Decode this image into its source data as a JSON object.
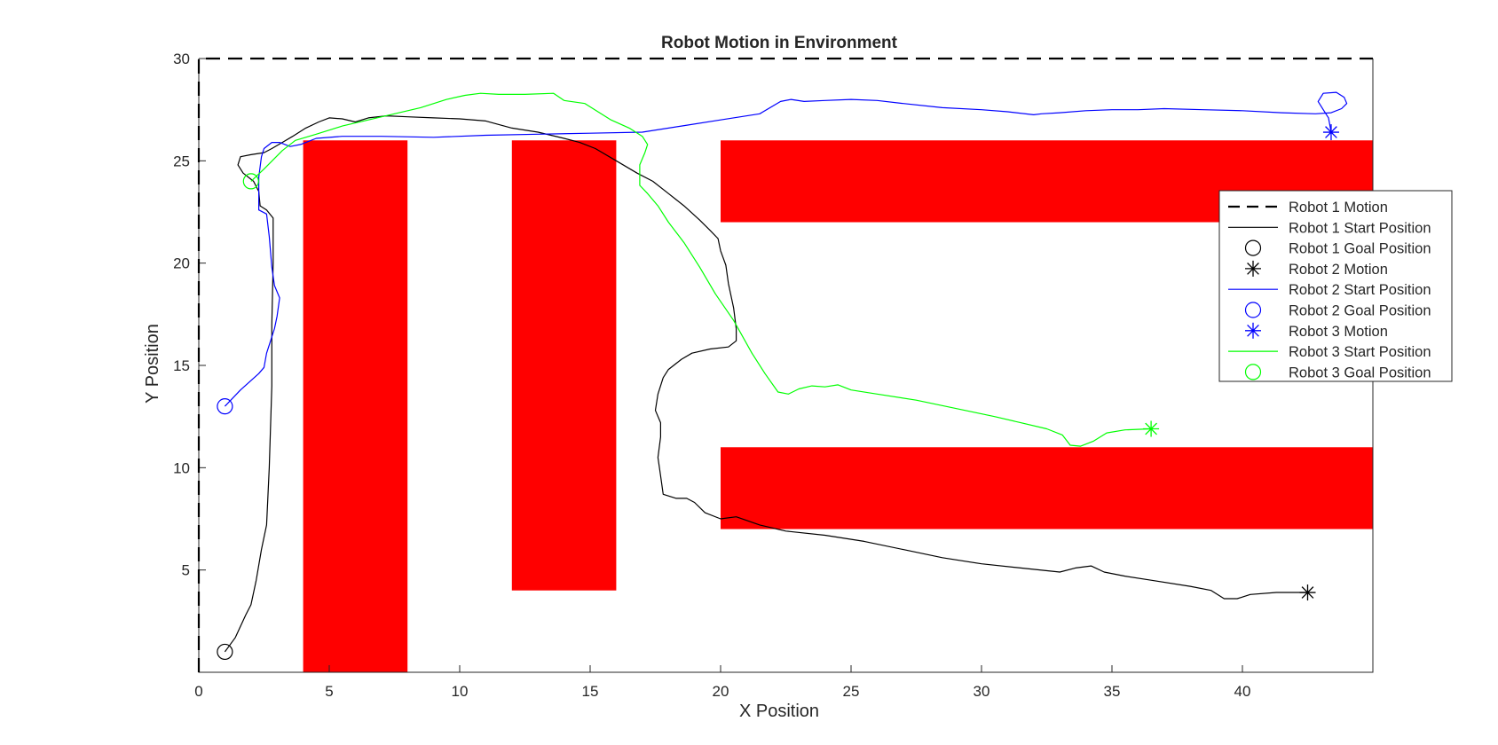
{
  "chart_data": {
    "type": "line",
    "title": "Robot Motion in Environment",
    "xlabel": "X Position",
    "ylabel": "Y Position",
    "xlim": [
      0,
      45
    ],
    "ylim": [
      0,
      30
    ],
    "xticks": [
      0,
      5,
      10,
      15,
      20,
      25,
      30,
      35,
      40
    ],
    "yticks": [
      5,
      10,
      15,
      20,
      25,
      30
    ],
    "grid": false,
    "legend_position": "right",
    "boundary": {
      "color": "#000000",
      "points": [
        [
          0,
          0
        ],
        [
          0,
          30
        ],
        [
          45,
          30
        ]
      ]
    },
    "obstacles": {
      "color": "#ff0000",
      "rects": [
        {
          "x": [
            4,
            8
          ],
          "y": [
            0,
            26
          ]
        },
        {
          "x": [
            12,
            16
          ],
          "y": [
            4,
            26
          ]
        },
        {
          "x": [
            20,
            45
          ],
          "y": [
            22,
            26
          ]
        },
        {
          "x": [
            20,
            45
          ],
          "y": [
            7,
            11
          ]
        }
      ]
    },
    "robots": [
      {
        "color": "#000000",
        "start": [
          1,
          1
        ],
        "goal": [
          42.5,
          3.9
        ],
        "path": [
          [
            1,
            1
          ],
          [
            1.4,
            1.7
          ],
          [
            1.8,
            2.8
          ],
          [
            2,
            3.3
          ],
          [
            2.2,
            4.5
          ],
          [
            2.4,
            6
          ],
          [
            2.6,
            7.2
          ],
          [
            2.7,
            10
          ],
          [
            2.8,
            14
          ],
          [
            2.8,
            17
          ],
          [
            2.85,
            20
          ],
          [
            2.85,
            22.2
          ],
          [
            2.6,
            22.6
          ],
          [
            2.35,
            22.8
          ],
          [
            2.3,
            23.5
          ],
          [
            2.1,
            24
          ],
          [
            1.7,
            24.4
          ],
          [
            1.5,
            24.8
          ],
          [
            1.6,
            25.2
          ],
          [
            2,
            25.3
          ],
          [
            2.5,
            25.4
          ],
          [
            2.8,
            25.6
          ],
          [
            3.2,
            25.9
          ],
          [
            3.6,
            26.2
          ],
          [
            4.1,
            26.6
          ],
          [
            4.6,
            26.9
          ],
          [
            5,
            27.1
          ],
          [
            5.5,
            27.05
          ],
          [
            6,
            26.9
          ],
          [
            6.5,
            27.1
          ],
          [
            7.2,
            27.2
          ],
          [
            8,
            27.15
          ],
          [
            9,
            27.1
          ],
          [
            10,
            27.05
          ],
          [
            11,
            26.95
          ],
          [
            12,
            26.6
          ],
          [
            13,
            26.4
          ],
          [
            14,
            26.1
          ],
          [
            14.6,
            25.9
          ],
          [
            15.2,
            25.6
          ],
          [
            16,
            25
          ],
          [
            16.8,
            24.4
          ],
          [
            17.4,
            24
          ],
          [
            18,
            23.4
          ],
          [
            18.6,
            22.8
          ],
          [
            19.2,
            22.1
          ],
          [
            19.6,
            21.6
          ],
          [
            19.9,
            21.2
          ],
          [
            20,
            20.6
          ],
          [
            20.2,
            19.9
          ],
          [
            20.3,
            19
          ],
          [
            20.5,
            17.8
          ],
          [
            20.6,
            16.8
          ],
          [
            20.6,
            16.2
          ],
          [
            20.3,
            15.9
          ],
          [
            19.6,
            15.8
          ],
          [
            18.9,
            15.6
          ],
          [
            18.5,
            15.3
          ],
          [
            18,
            14.8
          ],
          [
            17.8,
            14.4
          ],
          [
            17.6,
            13.6
          ],
          [
            17.5,
            12.8
          ],
          [
            17.7,
            12.2
          ],
          [
            17.7,
            11.5
          ],
          [
            17.6,
            10.5
          ],
          [
            17.7,
            9.6
          ],
          [
            17.8,
            8.7
          ],
          [
            18.3,
            8.5
          ],
          [
            18.7,
            8.5
          ],
          [
            19,
            8.3
          ],
          [
            19.4,
            7.8
          ],
          [
            20,
            7.5
          ],
          [
            20.6,
            7.6
          ],
          [
            21.5,
            7.2
          ],
          [
            22.5,
            6.9
          ],
          [
            24,
            6.7
          ],
          [
            25.5,
            6.4
          ],
          [
            27,
            6
          ],
          [
            28.5,
            5.6
          ],
          [
            30,
            5.3
          ],
          [
            31.5,
            5.1
          ],
          [
            33,
            4.9
          ],
          [
            33.6,
            5.1
          ],
          [
            34.2,
            5.2
          ],
          [
            34.7,
            4.9
          ],
          [
            35.5,
            4.7
          ],
          [
            36.5,
            4.5
          ],
          [
            38,
            4.2
          ],
          [
            38.8,
            4
          ],
          [
            39.3,
            3.6
          ],
          [
            39.8,
            3.6
          ],
          [
            40.3,
            3.8
          ],
          [
            41.3,
            3.9
          ],
          [
            42.5,
            3.9
          ]
        ]
      },
      {
        "color": "#0000ff",
        "start": [
          1,
          13
        ],
        "goal": [
          43.4,
          26.4
        ],
        "path": [
          [
            1,
            13
          ],
          [
            1.6,
            13.8
          ],
          [
            2.3,
            14.6
          ],
          [
            2.5,
            14.9
          ],
          [
            2.6,
            15.6
          ],
          [
            2.7,
            16
          ],
          [
            2.9,
            16.8
          ],
          [
            3,
            17.4
          ],
          [
            3.1,
            18.3
          ],
          [
            2.9,
            18.9
          ],
          [
            2.8,
            19.8
          ],
          [
            2.7,
            21.3
          ],
          [
            2.6,
            22.4
          ],
          [
            2.3,
            22.6
          ],
          [
            2.3,
            23.3
          ],
          [
            2.3,
            24.2
          ],
          [
            2.4,
            25.2
          ],
          [
            2.5,
            25.6
          ],
          [
            2.8,
            25.9
          ],
          [
            3.1,
            25.9
          ],
          [
            3.5,
            25.7
          ],
          [
            3.9,
            25.8
          ],
          [
            4.5,
            26.1
          ],
          [
            5.5,
            26.2
          ],
          [
            7,
            26.2
          ],
          [
            9,
            26.15
          ],
          [
            11,
            26.25
          ],
          [
            13,
            26.3
          ],
          [
            15,
            26.35
          ],
          [
            17,
            26.4
          ],
          [
            18.5,
            26.7
          ],
          [
            20,
            27
          ],
          [
            21.5,
            27.3
          ],
          [
            22.3,
            27.9
          ],
          [
            22.7,
            28
          ],
          [
            23.2,
            27.9
          ],
          [
            24,
            27.95
          ],
          [
            25,
            28
          ],
          [
            26,
            27.95
          ],
          [
            27,
            27.8
          ],
          [
            28.5,
            27.6
          ],
          [
            30,
            27.5
          ],
          [
            31,
            27.4
          ],
          [
            32,
            27.25
          ],
          [
            32.3,
            27.3
          ],
          [
            33,
            27.35
          ],
          [
            34,
            27.45
          ],
          [
            35,
            27.5
          ],
          [
            36,
            27.5
          ],
          [
            37,
            27.55
          ],
          [
            38.5,
            27.5
          ],
          [
            40,
            27.45
          ],
          [
            41.5,
            27.35
          ],
          [
            42.8,
            27.3
          ],
          [
            43.4,
            27.35
          ],
          [
            43.8,
            27.55
          ],
          [
            44,
            27.8
          ],
          [
            43.9,
            28.1
          ],
          [
            43.6,
            28.35
          ],
          [
            43.1,
            28.3
          ],
          [
            42.9,
            27.9
          ],
          [
            43.1,
            27.5
          ],
          [
            43.3,
            27.1
          ],
          [
            43.4,
            26.4
          ]
        ]
      },
      {
        "color": "#00ff00",
        "start": [
          2,
          24
        ],
        "goal": [
          36.5,
          11.9
        ],
        "path": [
          [
            2,
            24
          ],
          [
            2.5,
            24.6
          ],
          [
            3.2,
            25.5
          ],
          [
            3.7,
            26
          ],
          [
            4.5,
            26.3
          ],
          [
            5.5,
            26.7
          ],
          [
            6.5,
            27
          ],
          [
            7.5,
            27.3
          ],
          [
            8.5,
            27.6
          ],
          [
            9.5,
            28
          ],
          [
            10.2,
            28.2
          ],
          [
            10.8,
            28.3
          ],
          [
            11.5,
            28.25
          ],
          [
            12.5,
            28.25
          ],
          [
            13.6,
            28.3
          ],
          [
            14,
            27.95
          ],
          [
            14.8,
            27.8
          ],
          [
            15.3,
            27.4
          ],
          [
            15.8,
            27
          ],
          [
            16.5,
            26.6
          ],
          [
            17,
            26.2
          ],
          [
            17.2,
            25.8
          ],
          [
            17.1,
            25.4
          ],
          [
            16.9,
            24.8
          ],
          [
            16.9,
            23.8
          ],
          [
            17.2,
            23.4
          ],
          [
            17.6,
            22.8
          ],
          [
            18,
            22
          ],
          [
            18.6,
            21
          ],
          [
            19.2,
            19.8
          ],
          [
            19.8,
            18.5
          ],
          [
            20.5,
            17.2
          ],
          [
            21.2,
            15.6
          ],
          [
            21.7,
            14.6
          ],
          [
            22.2,
            13.7
          ],
          [
            22.6,
            13.6
          ],
          [
            23,
            13.85
          ],
          [
            23.5,
            14
          ],
          [
            24,
            13.95
          ],
          [
            24.5,
            14.05
          ],
          [
            25,
            13.8
          ],
          [
            26,
            13.6
          ],
          [
            27.5,
            13.3
          ],
          [
            29,
            12.9
          ],
          [
            30.5,
            12.5
          ],
          [
            31.5,
            12.2
          ],
          [
            32.5,
            11.9
          ],
          [
            33.1,
            11.6
          ],
          [
            33.4,
            11.1
          ],
          [
            33.8,
            11.05
          ],
          [
            34.3,
            11.3
          ],
          [
            34.8,
            11.7
          ],
          [
            35.5,
            11.85
          ],
          [
            36.5,
            11.9
          ]
        ]
      }
    ],
    "legend": [
      "Robot 1 Motion",
      "Robot 1 Start Position",
      "Robot 1 Goal Position",
      "Robot 2 Motion",
      "Robot 2 Start Position",
      "Robot 2 Goal Position",
      "Robot 3 Motion",
      "Robot 3 Start Position",
      "Robot 3 Goal Position"
    ]
  }
}
